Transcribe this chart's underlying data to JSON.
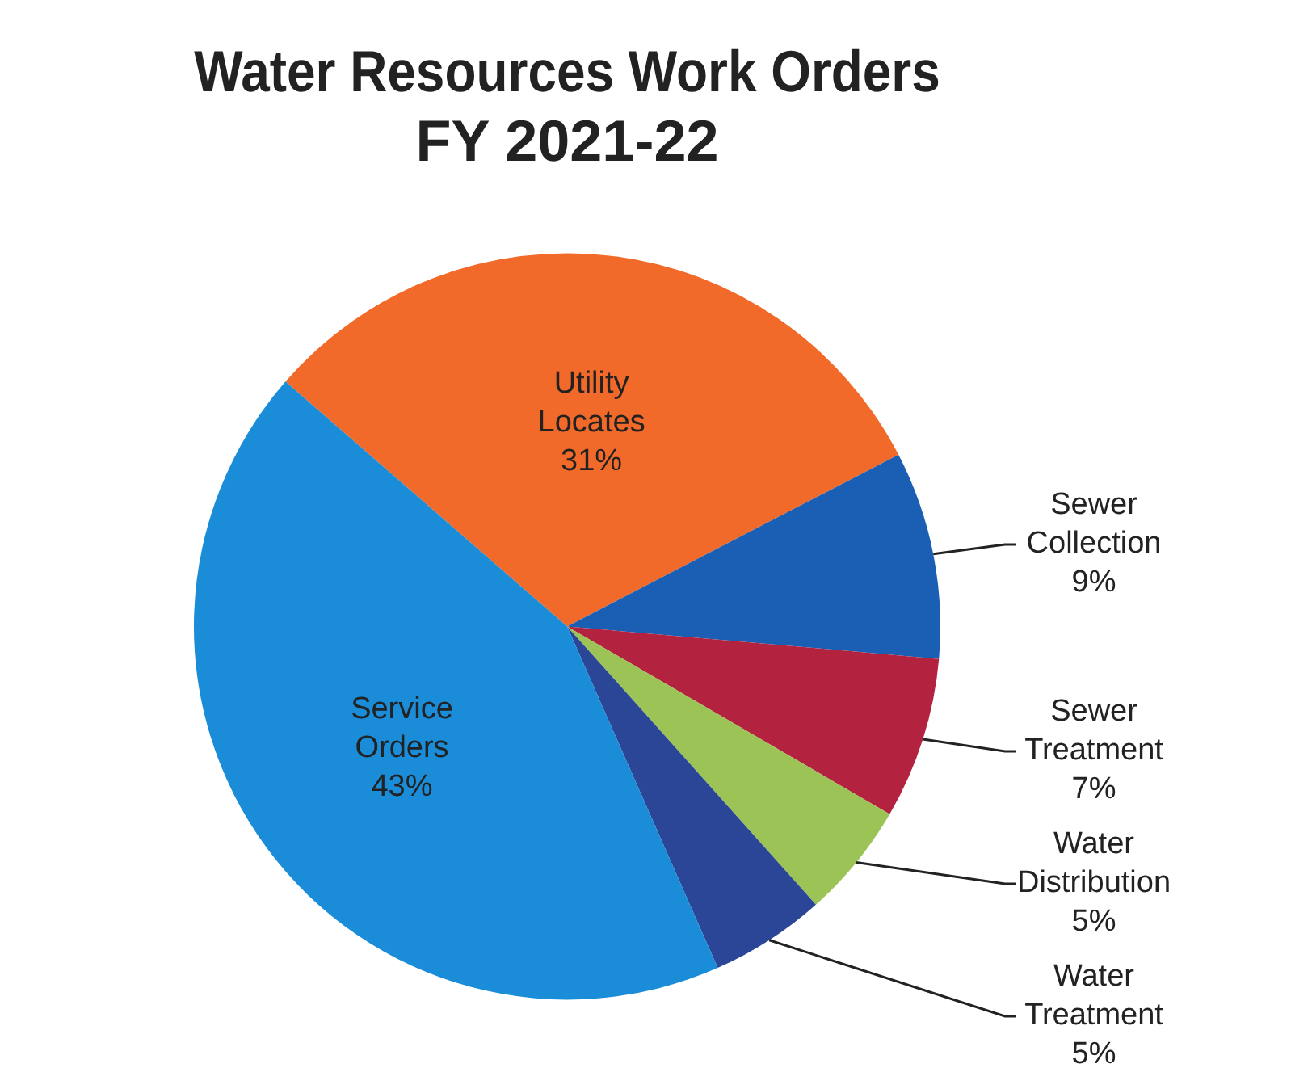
{
  "chart_data": {
    "type": "pie",
    "title": "Water Resources Work Orders\nFY 2021-22",
    "categories": [
      "Utility Locates",
      "Sewer Collection",
      "Sewer Treatment",
      "Water Distribution",
      "Water Treatment",
      "Service Orders"
    ],
    "values": [
      31,
      9,
      7,
      5,
      5,
      43
    ],
    "value_labels": [
      "31%",
      "9%",
      "7%",
      "5%",
      "5%",
      "43%"
    ],
    "colors": [
      "#f26a2a",
      "#1b5fb4",
      "#b3223f",
      "#9cc356",
      "#2b4597",
      "#1a8cd8"
    ],
    "legend": false
  }
}
